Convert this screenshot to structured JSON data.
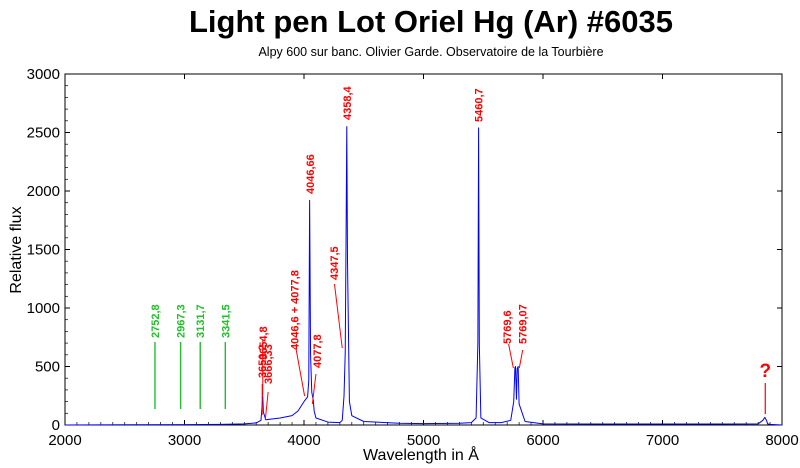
{
  "chart_data": {
    "type": "line",
    "title": "Light pen Lot Oriel Hg (Ar) #6035",
    "subtitle": "Alpy 600 sur banc. Olivier Garde. Observatoire de la Tourbière",
    "xlabel": "Wavelength in Å",
    "ylabel": "Relative flux",
    "xlim": [
      2000,
      8000
    ],
    "ylim": [
      0,
      3000
    ],
    "xticks": [
      "2000",
      "3000",
      "4000",
      "5000",
      "6000",
      "7000",
      "8000"
    ],
    "yticks": [
      "0",
      "500",
      "1000",
      "1500",
      "2000",
      "2500",
      "3000"
    ],
    "grid": false,
    "series": [
      {
        "color": "#0000ff",
        "x": [
          2000,
          2500,
          3000,
          3300,
          3500,
          3600,
          3640,
          3650,
          3655,
          3660,
          3680,
          3800,
          3900,
          3950,
          4000,
          4030,
          4040,
          4047,
          4055,
          4065,
          4078,
          4085,
          4100,
          4200,
          4300,
          4320,
          4335,
          4345,
          4352,
          4358,
          4364,
          4380,
          4400,
          4500,
          4800,
          5000,
          5300,
          5400,
          5440,
          5455,
          5461,
          5467,
          5480,
          5550,
          5650,
          5730,
          5755,
          5765,
          5770,
          5778,
          5784,
          5792,
          5800,
          5850,
          6000,
          6500,
          7000,
          7500,
          7800,
          7840,
          7856,
          7870,
          7880,
          7900,
          8000
        ],
        "y": [
          0,
          2,
          3,
          5,
          10,
          18,
          40,
          180,
          250,
          110,
          45,
          60,
          80,
          120,
          200,
          240,
          380,
          1920,
          600,
          280,
          210,
          120,
          60,
          25,
          20,
          40,
          250,
          620,
          1600,
          2550,
          1400,
          200,
          80,
          30,
          15,
          12,
          15,
          20,
          60,
          700,
          2540,
          700,
          60,
          20,
          20,
          40,
          200,
          490,
          500,
          220,
          480,
          500,
          180,
          30,
          10,
          8,
          8,
          8,
          10,
          40,
          65,
          40,
          10,
          5,
          0
        ]
      }
    ],
    "annotations_red": [
      {
        "text": "3650,2",
        "x": 3650,
        "y_top": 90,
        "y_bottom": 0
      },
      {
        "text": "3654,8",
        "x": 3654.8,
        "y_top": 245,
        "y_bottom": 0
      },
      {
        "text": "3666,33",
        "x": 3666,
        "y_top": 0,
        "y_bottom": 0
      },
      {
        "text": "4046,6 + 4077,8",
        "x": 4000,
        "y_top": 0,
        "y_bottom": 0
      },
      {
        "text": "4046,66",
        "x": 4046.66,
        "y_top": 0,
        "y_bottom": 0
      },
      {
        "text": "4077,8",
        "x": 4077.8,
        "y_top": 0,
        "y_bottom": 0
      },
      {
        "text": "4347,5",
        "x": 4347.5,
        "y_top": 0,
        "y_bottom": 0
      },
      {
        "text": "4358,4",
        "x": 4358.4,
        "y_top": 0,
        "y_bottom": 0
      },
      {
        "text": "5460,7",
        "x": 5460.7,
        "y_top": 0,
        "y_bottom": 0
      },
      {
        "text": "5769,6",
        "x": 5769.6,
        "y_top": 0,
        "y_bottom": 0
      },
      {
        "text": "5769,07",
        "x": 5790,
        "y_top": 0,
        "y_bottom": 0
      },
      {
        "text": "?",
        "x": 7860,
        "y_top": 0,
        "y_bottom": 0
      }
    ],
    "annotations_green": [
      {
        "text": "2752,8",
        "x": 2752.8
      },
      {
        "text": "2967,3",
        "x": 2967.3
      },
      {
        "text": "3131,7",
        "x": 3131.7
      },
      {
        "text": "3341,5",
        "x": 3341.5
      }
    ],
    "colors": {
      "spectrum": "#0000ff",
      "annotation_red": "#ff0000",
      "annotation_green": "#22c02a",
      "axis": "#000000"
    }
  }
}
